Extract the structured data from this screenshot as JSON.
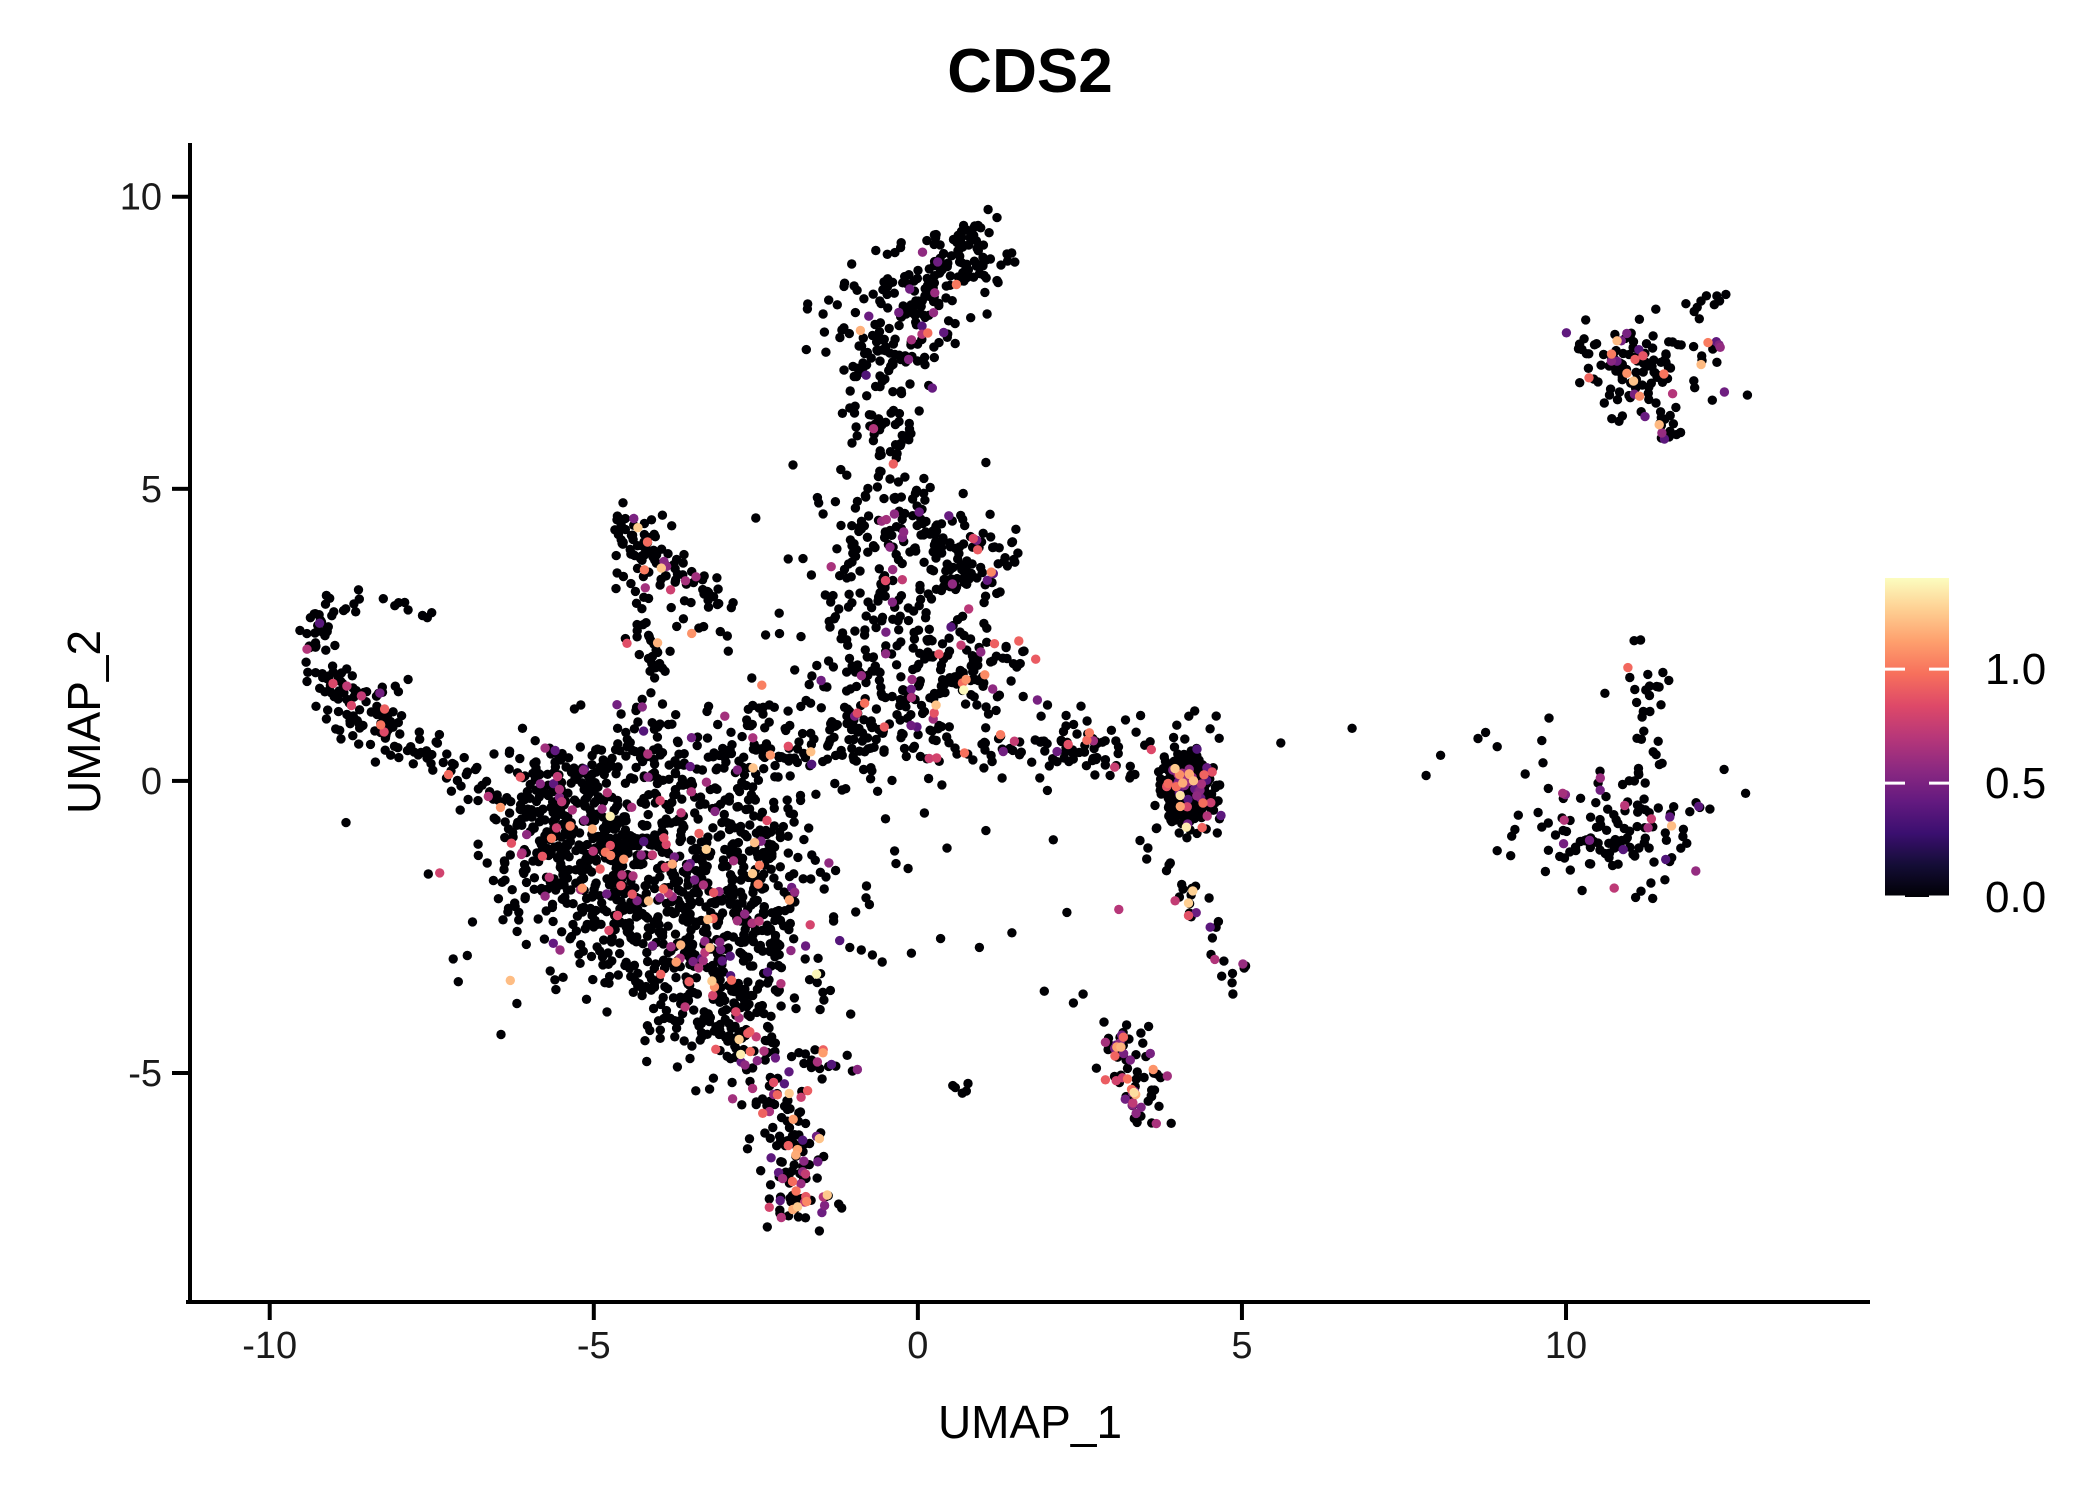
{
  "page": {
    "background": "#ffffff"
  },
  "chart_data": {
    "type": "scatter",
    "title": "CDS2",
    "xlabel": "UMAP_1",
    "ylabel": "UMAP_2",
    "x_ticks": [
      -10,
      -5,
      0,
      5,
      10
    ],
    "y_ticks": [
      10,
      5,
      0,
      -5
    ],
    "x_range": [
      -11.23,
      14.69
    ],
    "y_range": [
      -8.92,
      10.92
    ],
    "grid": false,
    "legend_position": "right",
    "point_radius_px": 4.7,
    "seed": 1337,
    "colormap": {
      "name": "magma",
      "stops": [
        "#000004",
        "#140d36",
        "#3b0f70",
        "#641a80",
        "#8c2981",
        "#b73779",
        "#de4968",
        "#f7705c",
        "#fe9f6d",
        "#fecf92",
        "#fcfdbf"
      ]
    },
    "colorbar": {
      "vmin": 0.0,
      "vmax": 1.4,
      "ticks": [
        1.0,
        0.5,
        0.0
      ],
      "tick_labels": [
        "1.0",
        "0.5",
        "0.0"
      ]
    },
    "colored_value_mix": [
      [
        0.35,
        0.75,
        0.55
      ],
      [
        0.75,
        1.05,
        0.3
      ],
      [
        1.05,
        1.25,
        0.12
      ],
      [
        1.25,
        1.4,
        0.03
      ]
    ],
    "clusters": [
      {
        "name": "head",
        "kind": "blob",
        "c": [
          0.72,
          8.95
        ],
        "s": [
          0.42,
          0.33
        ],
        "n": 85,
        "cf": 0.03
      },
      {
        "name": "head-top",
        "kind": "line",
        "p": [
          [
            0.2,
            9.3
          ],
          [
            0.95,
            9.45
          ]
        ],
        "j": 0.1,
        "n": 10,
        "cf": 0
      },
      {
        "name": "neck",
        "kind": "line",
        "p": [
          [
            0.4,
            8.5
          ],
          [
            -0.2,
            8.2
          ]
        ],
        "j": 0.15,
        "n": 12,
        "cf": 0.05
      },
      {
        "name": "upper-mass",
        "kind": "blob",
        "c": [
          -0.45,
          7.9
        ],
        "s": [
          0.52,
          0.52
        ],
        "n": 120,
        "cf": 0.07
      },
      {
        "name": "column",
        "kind": "line",
        "p": [
          [
            -0.75,
            7.25
          ],
          [
            -0.4,
            4.7
          ]
        ],
        "j": 0.33,
        "n": 95,
        "cf": 0.06
      },
      {
        "name": "column-base",
        "kind": "blob",
        "c": [
          -0.3,
          4.25
        ],
        "s": [
          0.55,
          0.4
        ],
        "n": 55,
        "cf": 0.06
      },
      {
        "name": "upper-right-blob",
        "kind": "blob",
        "c": [
          0.75,
          3.8
        ],
        "s": [
          0.42,
          0.45
        ],
        "n": 75,
        "cf": 0.08
      },
      {
        "name": "blob-gap-dots",
        "kind": "line",
        "p": [
          [
            0.0,
            4.1
          ],
          [
            0.5,
            3.9
          ]
        ],
        "j": 0.2,
        "n": 10,
        "cf": 0
      },
      {
        "name": "mid-triangle",
        "kind": "blob",
        "c": [
          -0.45,
          2.7
        ],
        "s": [
          0.75,
          0.8
        ],
        "n": 150,
        "cf": 0.07
      },
      {
        "name": "lower-right-blob",
        "kind": "blob",
        "c": [
          0.8,
          1.95
        ],
        "s": [
          0.5,
          0.38
        ],
        "n": 90,
        "cf": 0.1
      },
      {
        "name": "junction",
        "kind": "blob",
        "c": [
          -0.9,
          0.95
        ],
        "s": [
          0.85,
          0.55
        ],
        "n": 170,
        "cf": 0.08
      },
      {
        "name": "junction-east",
        "kind": "line",
        "p": [
          [
            0.2,
            0.8
          ],
          [
            1.8,
            0.45
          ]
        ],
        "j": 0.25,
        "n": 30,
        "cf": 0.07
      },
      {
        "name": "chevron-arm-a",
        "kind": "line",
        "p": [
          [
            -4.55,
            4.2
          ],
          [
            -3.05,
            3.15
          ]
        ],
        "j": 0.17,
        "n": 55,
        "cf": 0.05
      },
      {
        "name": "chevron-knot",
        "kind": "blob",
        "c": [
          -4.35,
          4.25
        ],
        "s": [
          0.22,
          0.2
        ],
        "n": 25,
        "cf": 0.08
      },
      {
        "name": "chevron-arm-b",
        "kind": "line",
        "p": [
          [
            -4.45,
            4.1
          ],
          [
            -4.0,
            1.35
          ]
        ],
        "j": 0.2,
        "n": 45,
        "cf": 0.05
      },
      {
        "name": "chevron-inner",
        "kind": "line",
        "p": [
          [
            -3.9,
            3.6
          ],
          [
            -3.3,
            2.6
          ]
        ],
        "j": 0.25,
        "n": 25,
        "cf": 0.05
      },
      {
        "name": "chevron-bridge",
        "kind": "line",
        "p": [
          [
            -4.05,
            1.25
          ],
          [
            -4.5,
            0.45
          ]
        ],
        "j": 0.2,
        "n": 15,
        "cf": 0.07
      },
      {
        "name": "hook-arc",
        "kind": "arc",
        "c": [
          -8.52,
          2.3
        ],
        "r": 0.8,
        "a": [
          95,
          262
        ],
        "j": 0.13,
        "n": 55,
        "cf": 0.07
      },
      {
        "name": "hook-knot",
        "kind": "blob",
        "c": [
          -8.7,
          1.35
        ],
        "s": [
          0.33,
          0.27
        ],
        "n": 55,
        "cf": 0.1
      },
      {
        "name": "hook-chain",
        "kind": "line",
        "p": [
          [
            -8.35,
            0.95
          ],
          [
            -6.55,
            -0.3
          ]
        ],
        "j": 0.22,
        "n": 60,
        "cf": 0.08
      },
      {
        "name": "hook-tip",
        "kind": "line",
        "p": [
          [
            -8.3,
            3.1
          ],
          [
            -7.6,
            2.8
          ]
        ],
        "j": 0.12,
        "n": 8,
        "cf": 0.1
      },
      {
        "name": "mass-core",
        "kind": "blob",
        "c": [
          -4.05,
          -1.7
        ],
        "s": [
          1.15,
          0.95
        ],
        "n": 650,
        "cf": 0.09
      },
      {
        "name": "mass-top-band",
        "kind": "line",
        "p": [
          [
            -6.4,
            -0.15
          ],
          [
            -2.1,
            0.55
          ]
        ],
        "j": 0.35,
        "n": 170,
        "cf": 0.08
      },
      {
        "name": "mass-left-lobe",
        "kind": "blob",
        "c": [
          -5.7,
          -0.9
        ],
        "s": [
          0.55,
          0.6
        ],
        "n": 130,
        "cf": 0.08
      },
      {
        "name": "mass-bottom-lobe",
        "kind": "blob",
        "c": [
          -3.25,
          -3.55
        ],
        "s": [
          0.65,
          0.6
        ],
        "n": 200,
        "cf": 0.1
      },
      {
        "name": "mass-right-edge",
        "kind": "line",
        "p": [
          [
            -2.3,
            -0.3
          ],
          [
            -2.5,
            -3.0
          ]
        ],
        "j": 0.3,
        "n": 90,
        "cf": 0.1
      },
      {
        "name": "mass-halo",
        "kind": "blob",
        "c": [
          -4.0,
          -1.4
        ],
        "s": [
          1.9,
          1.5
        ],
        "n": 130,
        "cf": 0.08
      },
      {
        "name": "mass-bottom-tip",
        "kind": "line",
        "p": [
          [
            -2.9,
            -3.9
          ],
          [
            -2.6,
            -4.4
          ]
        ],
        "j": 0.2,
        "n": 30,
        "cf": 0.15
      },
      {
        "name": "tail",
        "kind": "line",
        "p": [
          [
            -2.55,
            -4.45
          ],
          [
            -1.95,
            -6.35
          ]
        ],
        "j": 0.26,
        "n": 85,
        "cf": 0.3
      },
      {
        "name": "tail-knot",
        "kind": "blob",
        "c": [
          -1.85,
          -6.95
        ],
        "s": [
          0.28,
          0.33
        ],
        "n": 60,
        "cf": 0.38
      },
      {
        "name": "tail-spur",
        "kind": "line",
        "p": [
          [
            -1.8,
            -4.65
          ],
          [
            -1.05,
            -5.0
          ]
        ],
        "j": 0.14,
        "n": 18,
        "cf": 0.2
      },
      {
        "name": "small-pair",
        "kind": "blob",
        "c": [
          0.7,
          -5.3
        ],
        "s": [
          0.13,
          0.09
        ],
        "n": 5,
        "cf": 0
      },
      {
        "name": "bottom-right-cluster",
        "kind": "line",
        "p": [
          [
            3.0,
            -4.35
          ],
          [
            3.55,
            -5.65
          ]
        ],
        "j": 0.2,
        "n": 75,
        "cf": 0.33
      },
      {
        "name": "band",
        "kind": "polyline",
        "p": [
          [
            2.15,
            0.55
          ],
          [
            3.2,
            0.15
          ],
          [
            4.5,
            -0.25
          ],
          [
            6.0,
            -0.6
          ],
          [
            7.6,
            -0.95
          ],
          [
            9.2,
            -1.25
          ],
          [
            10.5,
            -1.35
          ],
          [
            11.4,
            -0.85
          ]
        ],
        "j": 0.3,
        "n": 470,
        "cf": 0.1
      },
      {
        "name": "band-right-thick",
        "kind": "blob",
        "c": [
          10.8,
          -0.9
        ],
        "s": [
          0.75,
          0.45
        ],
        "n": 120,
        "cf": 0.12
      },
      {
        "name": "band-right-spur-up",
        "kind": "line",
        "p": [
          [
            11.15,
            -0.45
          ],
          [
            11.3,
            2.3
          ]
        ],
        "j": 0.16,
        "n": 30,
        "cf": 0.1
      },
      {
        "name": "band-top-strays-left",
        "kind": "blob",
        "c": [
          3.6,
          0.75
        ],
        "s": [
          1.0,
          0.28
        ],
        "n": 18,
        "cf": 0.05
      },
      {
        "name": "band-top-strays-right",
        "kind": "blob",
        "c": [
          8.9,
          0.3
        ],
        "s": [
          1.2,
          0.35
        ],
        "n": 14,
        "cf": 0.05
      },
      {
        "name": "band-down-spur",
        "kind": "line",
        "p": [
          [
            3.45,
            -0.75
          ],
          [
            4.85,
            -3.15
          ]
        ],
        "j": 0.16,
        "n": 28,
        "cf": 0.2
      },
      {
        "name": "spur-knot",
        "kind": "blob",
        "c": [
          4.95,
          -3.3
        ],
        "s": [
          0.17,
          0.14
        ],
        "n": 8,
        "cf": 0.45
      },
      {
        "name": "band-left-approach",
        "kind": "line",
        "p": [
          [
            1.55,
            0.6
          ],
          [
            2.1,
            0.55
          ]
        ],
        "j": 0.12,
        "n": 8,
        "cf": 0
      },
      {
        "name": "island-core",
        "kind": "blob",
        "c": [
          11.25,
          6.95
        ],
        "s": [
          0.5,
          0.42
        ],
        "n": 115,
        "cf": 0.16
      },
      {
        "name": "island-left-wing",
        "kind": "line",
        "p": [
          [
            10.0,
            7.65
          ],
          [
            10.75,
            7.3
          ]
        ],
        "j": 0.12,
        "n": 16,
        "cf": 0.12
      },
      {
        "name": "island-chain",
        "kind": "line",
        "p": [
          [
            11.95,
            8.05
          ],
          [
            12.4,
            8.35
          ]
        ],
        "j": 0.09,
        "n": 10,
        "cf": 0
      },
      {
        "name": "island-bottom-tip",
        "kind": "line",
        "p": [
          [
            11.35,
            6.3
          ],
          [
            11.55,
            5.85
          ]
        ],
        "j": 0.1,
        "n": 12,
        "cf": 0.25
      }
    ],
    "stray_points": [
      [
        -1.05,
        -2.85,
        0
      ],
      [
        -0.55,
        -3.1,
        0
      ],
      [
        -0.1,
        -2.95,
        0
      ],
      [
        0.35,
        -2.7,
        0
      ],
      [
        0.95,
        -2.85,
        0
      ],
      [
        1.45,
        -2.6,
        0
      ],
      [
        -1.5,
        -3.3,
        0
      ],
      [
        2.3,
        -2.25,
        0
      ],
      [
        2.55,
        -3.65,
        0
      ],
      [
        1.95,
        -3.6,
        0
      ],
      [
        -0.15,
        -1.5,
        0
      ],
      [
        0.45,
        -1.15,
        0
      ],
      [
        1.05,
        -0.85,
        0
      ],
      [
        -0.2,
        5.2,
        0
      ],
      [
        1.05,
        5.45,
        0
      ],
      [
        -2.5,
        4.5,
        0
      ],
      [
        -2.0,
        3.8,
        0
      ],
      [
        -2.85,
        3.05,
        0
      ],
      [
        -1.55,
        4.85,
        0
      ],
      [
        -2.35,
        2.5,
        0
      ],
      [
        -1.9,
        1.9,
        0
      ],
      [
        -5.2,
        1.3,
        0
      ],
      [
        -6.1,
        0.9,
        0
      ],
      [
        -7.0,
        0.4,
        0
      ],
      [
        5.6,
        0.65,
        0
      ],
      [
        6.7,
        0.9,
        0
      ],
      [
        0.1,
        -0.55,
        0
      ],
      [
        1.3,
        0.05,
        0
      ],
      [
        2.0,
        1.3,
        0
      ],
      [
        10.6,
        1.5,
        0
      ],
      [
        11.05,
        2.4,
        0
      ],
      [
        -0.8,
        -2.0,
        0
      ],
      [
        -1.3,
        -2.4,
        0
      ],
      [
        3.1,
        -2.2,
        0.7
      ],
      [
        2.4,
        -3.8,
        0
      ]
    ]
  }
}
